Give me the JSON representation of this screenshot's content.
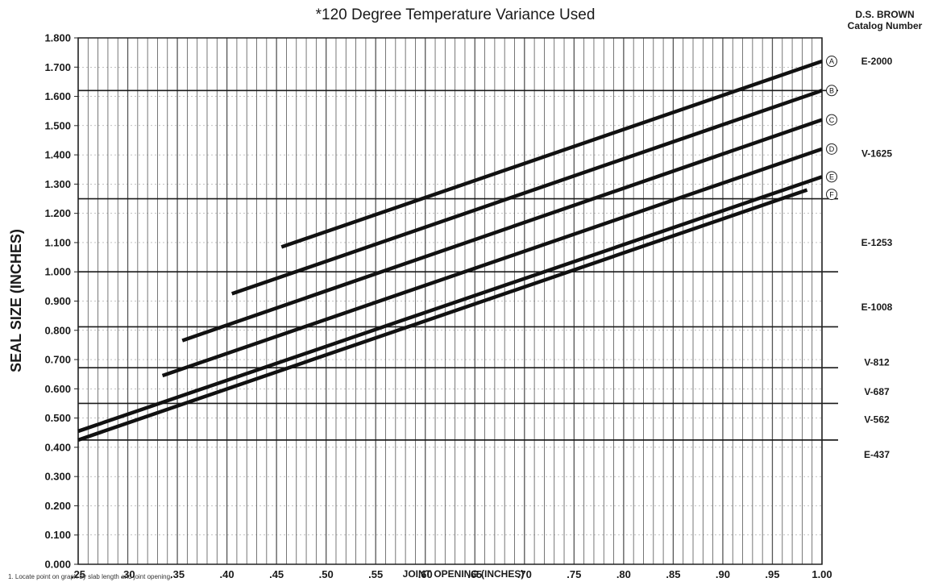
{
  "header": {
    "title": "*120 Degree Temperature Variance Used",
    "catalog_title_line1": "D.S. BROWN",
    "catalog_title_line2": "Catalog Number"
  },
  "footnote": "1. Locate point on graph by slab length and joint opening.",
  "chart_data": {
    "type": "line",
    "title": "*120 Degree Temperature Variance Used",
    "xlabel": "JOINT OPENING (INCHES)",
    "ylabel": "SEAL SIZE (INCHES)",
    "xlim": [
      0.25,
      1.0
    ],
    "ylim": [
      0.0,
      1.8
    ],
    "grid": true,
    "x_ticks": [
      0.25,
      0.3,
      0.35,
      0.4,
      0.45,
      0.5,
      0.55,
      0.6,
      0.65,
      0.7,
      0.75,
      0.8,
      0.85,
      0.9,
      0.95,
      1.0
    ],
    "x_tick_labels": [
      ".25",
      ".30",
      ".35",
      ".40",
      ".45",
      ".50",
      ".55",
      ".60",
      ".65",
      ".70",
      ".75",
      ".80",
      ".85",
      ".90",
      ".95",
      "1.00"
    ],
    "y_ticks": [
      0.0,
      0.1,
      0.2,
      0.3,
      0.4,
      0.5,
      0.6,
      0.7,
      0.8,
      0.9,
      1.0,
      1.1,
      1.2,
      1.3,
      1.4,
      1.5,
      1.6,
      1.7,
      1.8
    ],
    "y_tick_labels": [
      "0.000",
      "0.100",
      "0.200",
      "0.300",
      "0.400",
      "0.500",
      "0.600",
      "0.700",
      "0.800",
      "0.900",
      "1.000",
      "1.100",
      "1.200",
      "1.300",
      "1.400",
      "1.500",
      "1.600",
      "1.700",
      "1.800"
    ],
    "series": [
      {
        "name": "A",
        "x": [
          0.455,
          1.0
        ],
        "y": [
          1.085,
          1.72
        ]
      },
      {
        "name": "B",
        "x": [
          0.405,
          1.0
        ],
        "y": [
          0.925,
          1.62
        ]
      },
      {
        "name": "C",
        "x": [
          0.355,
          1.0
        ],
        "y": [
          0.765,
          1.52
        ]
      },
      {
        "name": "D",
        "x": [
          0.335,
          1.0
        ],
        "y": [
          0.645,
          1.42
        ]
      },
      {
        "name": "E",
        "x": [
          0.25,
          1.0
        ],
        "y": [
          0.455,
          1.325
        ]
      },
      {
        "name": "F",
        "x": [
          0.25,
          0.985
        ],
        "y": [
          0.425,
          1.28
        ]
      }
    ],
    "reference_lines": [
      {
        "label": "E-2000",
        "y": 1.62
      },
      {
        "label": "V-1625",
        "y": 1.25
      },
      {
        "label": "E-1253",
        "y": 1.0
      },
      {
        "label": "E-1008",
        "y": 0.812
      },
      {
        "label": "V-812",
        "y": 0.672
      },
      {
        "label": "V-687",
        "y": 0.55
      },
      {
        "label": "V-562",
        "y": 0.425
      },
      {
        "label": "E-437",
        "y": 0.425
      }
    ],
    "catalog_labels": [
      {
        "label": "E-2000",
        "y": 1.72
      },
      {
        "label": "V-1625",
        "y": 1.405
      },
      {
        "label": "E-1253",
        "y": 1.1
      },
      {
        "label": "E-1008",
        "y": 0.88
      },
      {
        "label": "V-812",
        "y": 0.69
      },
      {
        "label": "V-687",
        "y": 0.59
      },
      {
        "label": "V-562",
        "y": 0.495
      },
      {
        "label": "E-437",
        "y": 0.375
      }
    ]
  }
}
